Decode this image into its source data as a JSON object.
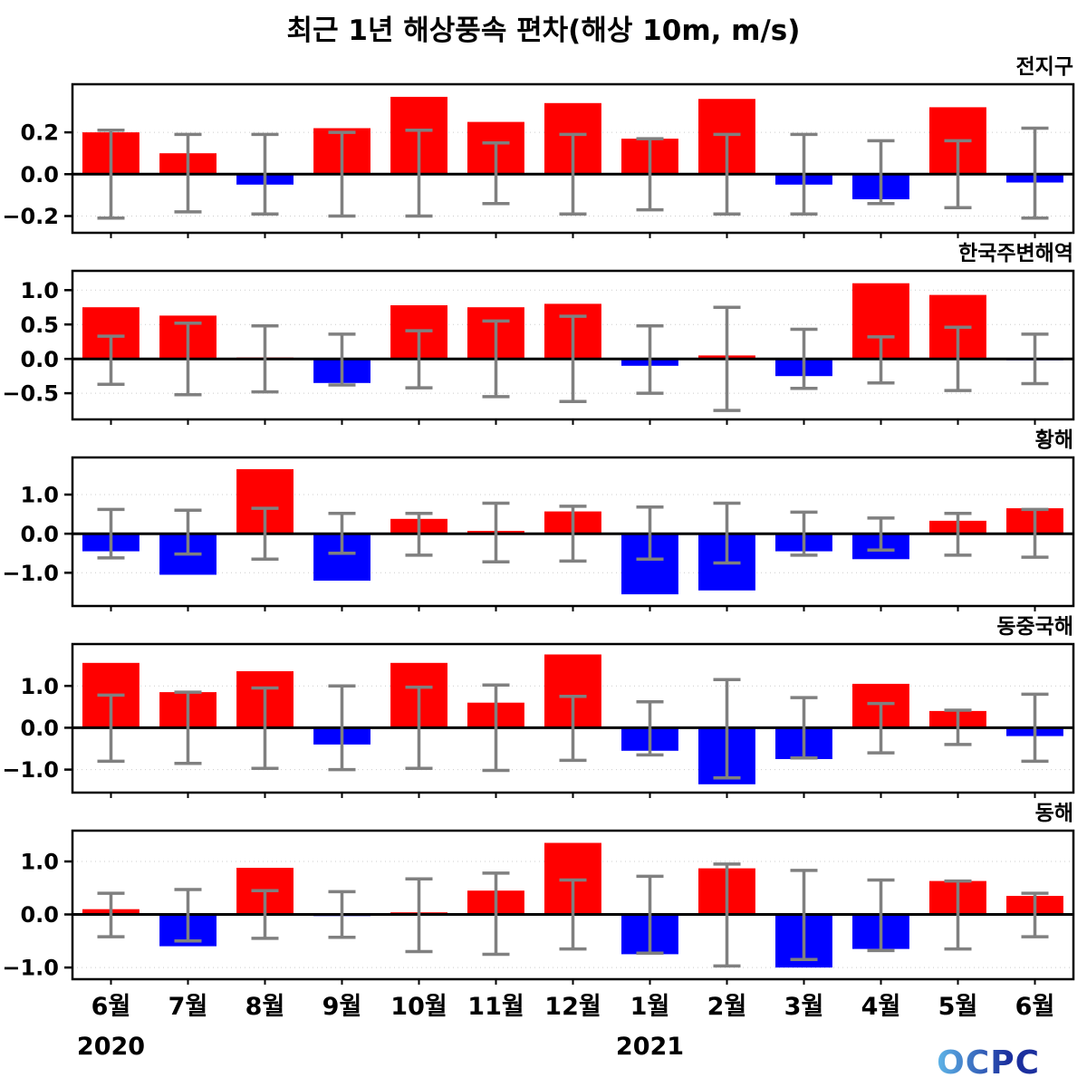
{
  "logo": {
    "text": "OCPC"
  },
  "chart_data": {
    "type": "bar",
    "title": "최근 1년 해상풍속 편차(해상 10m, m/s)",
    "unit": "m/s",
    "categories": [
      "6월",
      "7월",
      "8월",
      "9월",
      "10월",
      "11월",
      "12월",
      "1월",
      "2월",
      "3월",
      "4월",
      "5월",
      "6월"
    ],
    "year_labels": [
      {
        "text": "2020",
        "month_index": 0
      },
      {
        "text": "2021",
        "month_index": 7
      }
    ],
    "bar_colors": {
      "positive": "#ff0000",
      "negative": "#0000ff"
    },
    "errorbar_color": "#808080",
    "grid": true,
    "legend": "none",
    "panels": [
      {
        "name": "전지구",
        "ylim": [
          -0.28,
          0.43
        ],
        "yticks": [
          -0.2,
          0.0,
          0.2
        ],
        "values": [
          0.2,
          0.1,
          -0.05,
          0.22,
          0.37,
          0.25,
          0.34,
          0.17,
          0.36,
          -0.05,
          -0.12,
          0.32,
          -0.04
        ],
        "error_low": [
          -0.21,
          -0.18,
          -0.19,
          -0.2,
          -0.2,
          -0.14,
          -0.19,
          -0.17,
          -0.19,
          -0.19,
          -0.14,
          -0.16,
          -0.21
        ],
        "error_high": [
          0.21,
          0.19,
          0.19,
          0.2,
          0.21,
          0.15,
          0.19,
          0.17,
          0.19,
          0.19,
          0.16,
          0.16,
          0.22
        ]
      },
      {
        "name": "한국주변해역",
        "ylim": [
          -0.88,
          1.28
        ],
        "yticks": [
          -0.5,
          0.0,
          0.5,
          1.0
        ],
        "values": [
          0.75,
          0.63,
          0.02,
          -0.35,
          0.78,
          0.75,
          0.8,
          -0.1,
          0.05,
          -0.25,
          1.1,
          0.93,
          -0.02
        ],
        "error_low": [
          -0.37,
          -0.52,
          -0.48,
          -0.38,
          -0.42,
          -0.55,
          -0.62,
          -0.5,
          -0.75,
          -0.43,
          -0.35,
          -0.46,
          -0.36
        ],
        "error_high": [
          0.33,
          0.52,
          0.48,
          0.36,
          0.41,
          0.55,
          0.62,
          0.48,
          0.75,
          0.43,
          0.32,
          0.46,
          0.36
        ]
      },
      {
        "name": "황해",
        "ylim": [
          -1.85,
          1.95
        ],
        "yticks": [
          -1.0,
          0.0,
          1.0
        ],
        "values": [
          -0.45,
          -1.05,
          1.65,
          -1.2,
          0.38,
          0.07,
          0.57,
          -1.55,
          -1.45,
          -0.45,
          -0.65,
          0.33,
          0.65
        ],
        "error_low": [
          -0.62,
          -0.52,
          -0.65,
          -0.5,
          -0.55,
          -0.72,
          -0.7,
          -0.65,
          -0.75,
          -0.55,
          -0.42,
          -0.55,
          -0.6
        ],
        "error_high": [
          0.62,
          0.6,
          0.65,
          0.52,
          0.52,
          0.78,
          0.7,
          0.68,
          0.78,
          0.55,
          0.4,
          0.52,
          0.62
        ]
      },
      {
        "name": "동중국해",
        "ylim": [
          -1.55,
          2.0
        ],
        "yticks": [
          -1.0,
          0.0,
          1.0
        ],
        "values": [
          1.55,
          0.85,
          1.35,
          -0.4,
          1.55,
          0.6,
          1.75,
          -0.55,
          -1.35,
          -0.75,
          1.05,
          0.4,
          -0.2
        ],
        "error_low": [
          -0.8,
          -0.85,
          -0.97,
          -1.0,
          -0.97,
          -1.02,
          -0.78,
          -0.65,
          -1.2,
          -0.72,
          -0.6,
          -0.4,
          -0.8
        ],
        "error_high": [
          0.78,
          0.85,
          0.95,
          1.0,
          0.97,
          1.02,
          0.75,
          0.62,
          1.15,
          0.72,
          0.58,
          0.42,
          0.8
        ]
      },
      {
        "name": "동해",
        "ylim": [
          -1.22,
          1.58
        ],
        "yticks": [
          -1.0,
          0.0,
          1.0
        ],
        "values": [
          0.1,
          -0.6,
          0.88,
          -0.03,
          0.04,
          0.45,
          1.35,
          -0.75,
          0.87,
          -1.0,
          -0.65,
          0.63,
          0.35
        ],
        "error_low": [
          -0.42,
          -0.5,
          -0.45,
          -0.43,
          -0.7,
          -0.75,
          -0.65,
          -0.73,
          -0.97,
          -0.85,
          -0.68,
          -0.65,
          -0.42
        ],
        "error_high": [
          0.4,
          0.47,
          0.45,
          0.43,
          0.67,
          0.78,
          0.65,
          0.72,
          0.95,
          0.83,
          0.65,
          0.63,
          0.4
        ]
      }
    ]
  }
}
